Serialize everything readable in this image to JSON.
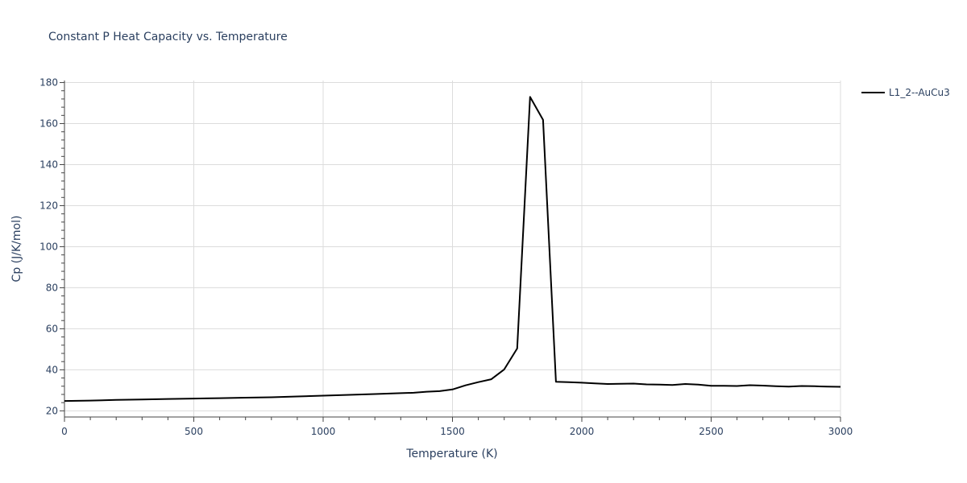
{
  "chart_data": {
    "type": "line",
    "title": "Constant P Heat Capacity vs. Temperature",
    "xlabel": "Temperature (K)",
    "ylabel": "Cp (J/K/mol)",
    "xlim": [
      0,
      3000
    ],
    "ylim": [
      17,
      181
    ],
    "xticks": [
      0,
      500,
      1000,
      1500,
      2000,
      2500,
      3000
    ],
    "yticks": [
      20,
      40,
      60,
      80,
      100,
      120,
      140,
      160,
      180
    ],
    "grid": true,
    "legend_position": "top-right",
    "series": [
      {
        "name": "L1_2--AuCu3",
        "color": "#000000",
        "x": [
          0,
          100,
          200,
          300,
          400,
          500,
          600,
          700,
          800,
          900,
          1000,
          1100,
          1200,
          1300,
          1350,
          1400,
          1450,
          1500,
          1550,
          1600,
          1650,
          1700,
          1750,
          1800,
          1850,
          1900,
          1950,
          2000,
          2050,
          2100,
          2150,
          2200,
          2250,
          2300,
          2350,
          2400,
          2450,
          2500,
          2550,
          2600,
          2650,
          2700,
          2750,
          2800,
          2850,
          2900,
          2950,
          3000
        ],
        "y": [
          24.8,
          25.0,
          25.3,
          25.5,
          25.8,
          26.0,
          26.2,
          26.4,
          26.6,
          27.0,
          27.4,
          27.8,
          28.2,
          28.6,
          28.8,
          29.3,
          29.6,
          30.4,
          32.4,
          34.0,
          35.4,
          40.2,
          50.4,
          173.0,
          161.8,
          34.2,
          34.0,
          33.7,
          33.4,
          33.1,
          33.2,
          33.3,
          32.9,
          32.8,
          32.6,
          33.1,
          32.8,
          32.2,
          32.2,
          32.1,
          32.5,
          32.3,
          32.0,
          31.8,
          32.1,
          32.0,
          31.8,
          31.7
        ]
      }
    ]
  }
}
